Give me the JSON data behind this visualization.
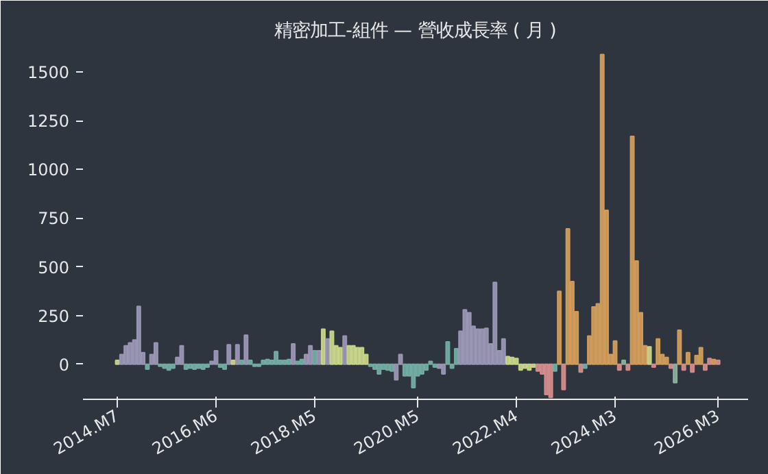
{
  "chart_data": {
    "type": "bar",
    "title": "精密加工-組件 — 營收成長率 ( 月 )",
    "categories": [
      "2014.M7",
      null,
      null,
      null,
      null,
      null,
      null,
      null,
      null,
      null,
      null,
      null,
      null,
      null,
      null,
      null,
      null,
      null,
      null,
      null,
      null,
      null,
      null,
      "2016.M6",
      null,
      null,
      null,
      null,
      null,
      null,
      null,
      null,
      null,
      null,
      null,
      null,
      null,
      null,
      null,
      null,
      null,
      null,
      null,
      null,
      null,
      null,
      "2018.M5",
      null,
      null,
      null,
      null,
      null,
      null,
      null,
      null,
      null,
      null,
      null,
      null,
      null,
      null,
      null,
      null,
      null,
      null,
      null,
      null,
      null,
      null,
      null,
      "2020.M5",
      null,
      null,
      null,
      null,
      null,
      null,
      null,
      null,
      null,
      null,
      null,
      null,
      null,
      null,
      null,
      null,
      null,
      null,
      null,
      null,
      null,
      null,
      "2022.M4",
      null,
      null,
      null,
      null,
      null,
      null,
      null,
      null,
      null,
      null,
      null,
      null,
      null,
      null,
      null,
      null,
      null,
      null,
      null,
      null,
      null,
      null,
      "2024.M3",
      null,
      null,
      null,
      null,
      null,
      null,
      null,
      null,
      null,
      null,
      null,
      null,
      null,
      null,
      null,
      null,
      null,
      null,
      null,
      null,
      null,
      null,
      null,
      "2026.M3"
    ],
    "values": [
      20,
      50,
      95,
      110,
      125,
      297,
      60,
      -25,
      50,
      110,
      -10,
      -20,
      -30,
      -20,
      35,
      95,
      -25,
      -20,
      -25,
      -20,
      -25,
      -15,
      15,
      70,
      -15,
      -25,
      100,
      20,
      100,
      20,
      150,
      20,
      -10,
      -10,
      20,
      25,
      20,
      65,
      20,
      20,
      25,
      105,
      15,
      25,
      50,
      95,
      70,
      70,
      180,
      130,
      170,
      95,
      85,
      145,
      95,
      95,
      85,
      85,
      50,
      -10,
      -25,
      -50,
      -25,
      -30,
      -35,
      -80,
      50,
      -60,
      -60,
      -120,
      -60,
      -50,
      -30,
      15,
      -15,
      -20,
      -50,
      115,
      -20,
      80,
      170,
      280,
      265,
      195,
      180,
      180,
      185,
      105,
      420,
      70,
      130,
      40,
      35,
      30,
      -30,
      -20,
      -30,
      -15,
      -35,
      -50,
      -155,
      -170,
      -35,
      375,
      -130,
      695,
      425,
      270,
      -40,
      -20,
      145,
      295,
      310,
      1590,
      790,
      50,
      120,
      -30,
      20,
      -30,
      1170,
      530,
      265,
      95,
      90,
      -15,
      130,
      50,
      35,
      -20,
      -95,
      175,
      -30,
      60,
      -40,
      45,
      85,
      -30,
      30,
      25,
      20
    ],
    "colors": [
      "#cdd98c",
      "#9d99b8",
      "#9d99b8",
      "#9d99b8",
      "#9d99b8",
      "#9d99b8",
      "#9d99b8",
      "#74b0a6",
      "#9d99b8",
      "#9d99b8",
      "#74b0a6",
      "#74b0a6",
      "#74b0a6",
      "#74b0a6",
      "#9d99b8",
      "#9d99b8",
      "#74b0a6",
      "#74b0a6",
      "#74b0a6",
      "#74b0a6",
      "#74b0a6",
      "#74b0a6",
      "#9d99b8",
      "#9d99b8",
      "#74b0a6",
      "#74b0a6",
      "#9d99b8",
      "#cdd98c",
      "#9d99b8",
      "#74b0a6",
      "#9d99b8",
      "#74b0a6",
      "#74b0a6",
      "#74b0a6",
      "#74b0a6",
      "#74b0a6",
      "#74b0a6",
      "#74b0a6",
      "#74b0a6",
      "#74b0a6",
      "#74b0a6",
      "#9d99b8",
      "#74b0a6",
      "#74b0a6",
      "#9d99b8",
      "#9d99b8",
      "#74b0a6",
      "#9d99b8",
      "#cdd98c",
      "#9d99b8",
      "#cdd98c",
      "#cdd98c",
      "#cdd98c",
      "#9d99b8",
      "#cdd98c",
      "#cdd98c",
      "#cdd98c",
      "#cdd98c",
      "#cdd98c",
      "#74b0a6",
      "#74b0a6",
      "#74b0a6",
      "#74b0a6",
      "#74b0a6",
      "#74b0a6",
      "#9d99b8",
      "#9d99b8",
      "#74b0a6",
      "#74b0a6",
      "#74b0a6",
      "#74b0a6",
      "#74b0a6",
      "#74b0a6",
      "#74b0a6",
      "#74b0a6",
      "#9d99b8",
      "#9d99b8",
      "#74b0a6",
      "#74b0a6",
      "#74b0a6",
      "#9d99b8",
      "#9d99b8",
      "#9d99b8",
      "#9d99b8",
      "#9d99b8",
      "#9d99b8",
      "#9d99b8",
      "#9d99b8",
      "#9d99b8",
      "#9d99b8",
      "#9d99b8",
      "#cdd98c",
      "#cdd98c",
      "#cdd98c",
      "#cdd98c",
      "#cdd98c",
      "#cdd98c",
      "#cdd98c",
      "#d98f8f",
      "#d98f8f",
      "#d98f8f",
      "#d98f8f",
      "#74b0a6",
      "#d6a05c",
      "#d98f8f",
      "#d6a05c",
      "#d6a05c",
      "#d6a05c",
      "#d98f8f",
      "#74b0a6",
      "#d6a05c",
      "#d6a05c",
      "#d6a05c",
      "#d6a05c",
      "#d6a05c",
      "#d6a05c",
      "#d6a05c",
      "#d98f8f",
      "#8fb5a0",
      "#d98f8f",
      "#d6a05c",
      "#d6a05c",
      "#d6a05c",
      "#d6a05c",
      "#cdd98c",
      "#d98f8f",
      "#d6a05c",
      "#d6a05c",
      "#d6a05c",
      "#d98f8f",
      "#8fb5a0",
      "#d6a05c",
      "#d98f8f",
      "#d6a05c",
      "#d98f8f",
      "#d6a05c",
      "#d6a05c",
      "#d98f8f",
      "#d98f8f",
      "#d6a05c",
      "#d98f8f"
    ],
    "ylim": [
      -180,
      1620
    ],
    "yticks": [
      0,
      250,
      500,
      750,
      1000,
      1250,
      1500
    ],
    "grid": false
  }
}
